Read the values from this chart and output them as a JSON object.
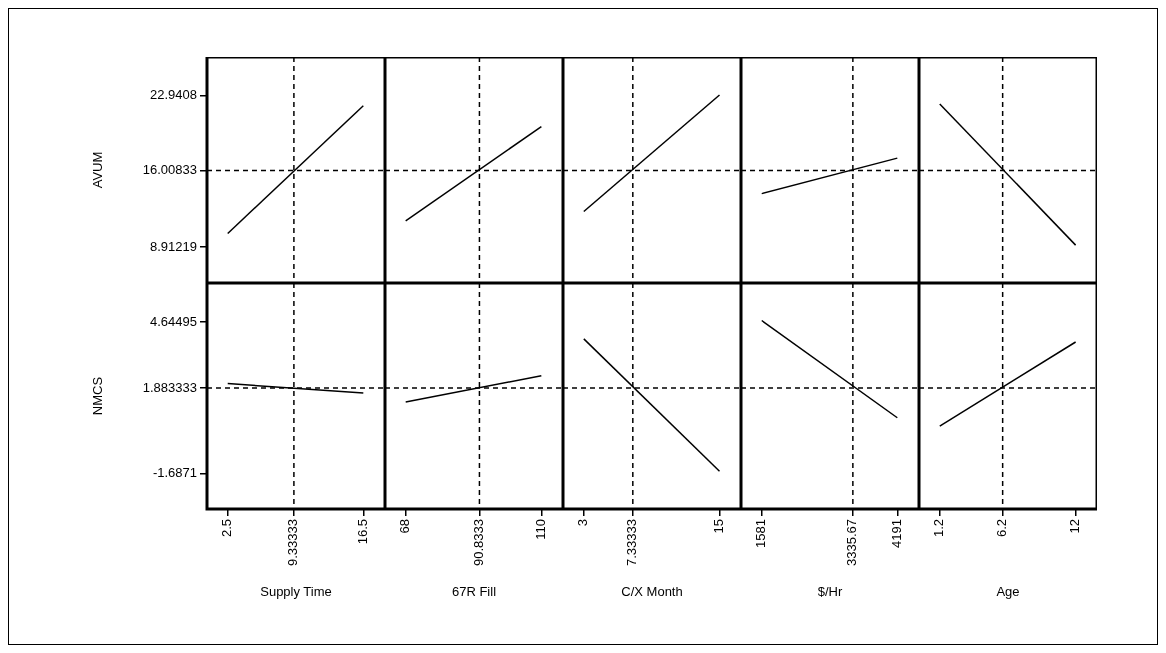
{
  "chart_data": [
    {
      "type": "line",
      "ylabel": "AVUM",
      "x": [
        2.5,
        16.5
      ],
      "xlim": [
        0.36,
        18.74
      ],
      "xticks": [
        2.5,
        9.33333,
        16.5
      ],
      "ylim": [
        5.58,
        26.52
      ],
      "yticks": [
        8.91219,
        16.00833,
        22.9408
      ],
      "tick_labels": "y",
      "marker": "none",
      "line_style": "solid",
      "series": [
        {
          "color": "#000000",
          "values": [
            10.17,
            22.0
          ]
        }
      ],
      "ref_lines": [
        {
          "axis": "x",
          "value": 9.33333,
          "line_style": "dashed",
          "color": "#000000"
        },
        {
          "axis": "y",
          "value": 16.00833,
          "line_style": "dashed",
          "color": "#000000"
        }
      ]
    },
    {
      "type": "line",
      "x": [
        68,
        110
      ],
      "xlim": [
        61.6,
        116.7
      ],
      "xticks": [
        68,
        90.8333,
        110
      ],
      "ylim": [
        5.58,
        26.52
      ],
      "yticks": [
        8.91219,
        16.00833,
        22.9408
      ],
      "tick_labels": false,
      "marker": "none",
      "line_style": "solid",
      "series": [
        {
          "color": "#000000",
          "values": [
            11.34,
            20.07
          ]
        }
      ],
      "ref_lines": [
        {
          "axis": "x",
          "value": 90.8333,
          "line_style": "dashed",
          "color": "#000000"
        },
        {
          "axis": "y",
          "value": 16.00833,
          "line_style": "dashed",
          "color": "#000000"
        }
      ]
    },
    {
      "type": "line",
      "x": [
        3,
        15
      ],
      "xlim": [
        1.16,
        16.9
      ],
      "xticks": [
        3,
        7.33333,
        15
      ],
      "ylim": [
        5.58,
        26.52
      ],
      "yticks": [
        8.91219,
        16.00833,
        22.9408
      ],
      "tick_labels": false,
      "marker": "none",
      "line_style": "solid",
      "series": [
        {
          "color": "#000000",
          "values": [
            12.2,
            23.0
          ]
        }
      ],
      "ref_lines": [
        {
          "axis": "x",
          "value": 7.33333,
          "line_style": "dashed",
          "color": "#000000"
        },
        {
          "axis": "y",
          "value": 16.00833,
          "line_style": "dashed",
          "color": "#000000"
        }
      ]
    },
    {
      "type": "line",
      "x": [
        1581,
        4191
      ],
      "xlim": [
        1182,
        4609
      ],
      "xticks": [
        1581,
        3335.67,
        4191
      ],
      "ylim": [
        5.58,
        26.52
      ],
      "yticks": [
        8.91219,
        16.00833,
        22.9408
      ],
      "tick_labels": false,
      "marker": "none",
      "line_style": "solid",
      "series": [
        {
          "color": "#000000",
          "values": [
            13.86,
            17.15
          ]
        }
      ],
      "ref_lines": [
        {
          "axis": "x",
          "value": 3335.67,
          "line_style": "dashed",
          "color": "#000000"
        },
        {
          "axis": "y",
          "value": 16.00833,
          "line_style": "dashed",
          "color": "#000000"
        }
      ]
    },
    {
      "type": "line",
      "x": [
        1.2,
        12
      ],
      "xlim": [
        -0.45,
        13.7
      ],
      "xticks": [
        1.2,
        6.2,
        12
      ],
      "ylim": [
        5.58,
        26.52
      ],
      "yticks": [
        8.91219,
        16.00833,
        22.9408
      ],
      "tick_labels": false,
      "marker": "none",
      "line_style": "solid",
      "series": [
        {
          "color": "#000000",
          "values": [
            22.17,
            9.09
          ]
        }
      ],
      "ref_lines": [
        {
          "axis": "x",
          "value": 6.2,
          "line_style": "dashed",
          "color": "#000000"
        },
        {
          "axis": "y",
          "value": 16.00833,
          "line_style": "dashed",
          "color": "#000000"
        }
      ]
    },
    {
      "type": "line",
      "ylabel": "NMCS",
      "xlabel": "Supply Time",
      "x": [
        2.5,
        16.5
      ],
      "xlim": [
        0.36,
        18.74
      ],
      "xticks": [
        2.5,
        9.33333,
        16.5
      ],
      "ylim": [
        -3.18,
        6.28
      ],
      "yticks": [
        -1.6871,
        1.883333,
        4.64495
      ],
      "marker": "none",
      "line_style": "solid",
      "series": [
        {
          "color": "#000000",
          "values": [
            2.07,
            1.68
          ]
        }
      ],
      "ref_lines": [
        {
          "axis": "x",
          "value": 9.33333,
          "line_style": "dashed",
          "color": "#000000"
        },
        {
          "axis": "y",
          "value": 1.883333,
          "line_style": "dashed",
          "color": "#000000"
        }
      ]
    },
    {
      "type": "line",
      "xlabel": "67R Fill",
      "x": [
        68,
        110
      ],
      "xlim": [
        61.6,
        116.7
      ],
      "xticks": [
        68,
        90.8333,
        110
      ],
      "ylim": [
        -3.18,
        6.28
      ],
      "yticks": [
        -1.6871,
        1.883333,
        4.64495
      ],
      "tick_labels": "x",
      "marker": "none",
      "line_style": "solid",
      "series": [
        {
          "color": "#000000",
          "values": [
            1.3,
            2.4
          ]
        }
      ],
      "ref_lines": [
        {
          "axis": "x",
          "value": 90.8333,
          "line_style": "dashed",
          "color": "#000000"
        },
        {
          "axis": "y",
          "value": 1.883333,
          "line_style": "dashed",
          "color": "#000000"
        }
      ]
    },
    {
      "type": "line",
      "xlabel": "C/X Month",
      "x": [
        3,
        15
      ],
      "xlim": [
        1.16,
        16.9
      ],
      "xticks": [
        3,
        7.33333,
        15
      ],
      "ylim": [
        -3.18,
        6.28
      ],
      "yticks": [
        -1.6871,
        1.883333,
        4.64495
      ],
      "tick_labels": "x",
      "marker": "none",
      "line_style": "solid",
      "series": [
        {
          "color": "#000000",
          "values": [
            3.94,
            -1.6
          ]
        }
      ],
      "ref_lines": [
        {
          "axis": "x",
          "value": 7.33333,
          "line_style": "dashed",
          "color": "#000000"
        },
        {
          "axis": "y",
          "value": 1.883333,
          "line_style": "dashed",
          "color": "#000000"
        }
      ]
    },
    {
      "type": "line",
      "xlabel": "$/Hr",
      "x": [
        1581,
        4191
      ],
      "xlim": [
        1182,
        4609
      ],
      "xticks": [
        1581,
        3335.67,
        4191
      ],
      "ylim": [
        -3.18,
        6.28
      ],
      "yticks": [
        -1.6871,
        1.883333,
        4.64495
      ],
      "tick_labels": "x",
      "marker": "none",
      "line_style": "solid",
      "series": [
        {
          "color": "#000000",
          "values": [
            4.71,
            0.64
          ]
        }
      ],
      "ref_lines": [
        {
          "axis": "x",
          "value": 3335.67,
          "line_style": "dashed",
          "color": "#000000"
        },
        {
          "axis": "y",
          "value": 1.883333,
          "line_style": "dashed",
          "color": "#000000"
        }
      ]
    },
    {
      "type": "line",
      "xlabel": "Age",
      "x": [
        1.2,
        12
      ],
      "xlim": [
        -0.45,
        13.7
      ],
      "xticks": [
        1.2,
        6.2,
        12
      ],
      "ylim": [
        -3.18,
        6.28
      ],
      "yticks": [
        -1.6871,
        1.883333,
        4.64495
      ],
      "tick_labels": "x",
      "marker": "none",
      "line_style": "solid",
      "series": [
        {
          "color": "#000000",
          "values": [
            0.29,
            3.81
          ]
        }
      ],
      "ref_lines": [
        {
          "axis": "x",
          "value": 6.2,
          "line_style": "dashed",
          "color": "#000000"
        },
        {
          "axis": "y",
          "value": 1.883333,
          "line_style": "dashed",
          "color": "#000000"
        }
      ]
    }
  ]
}
